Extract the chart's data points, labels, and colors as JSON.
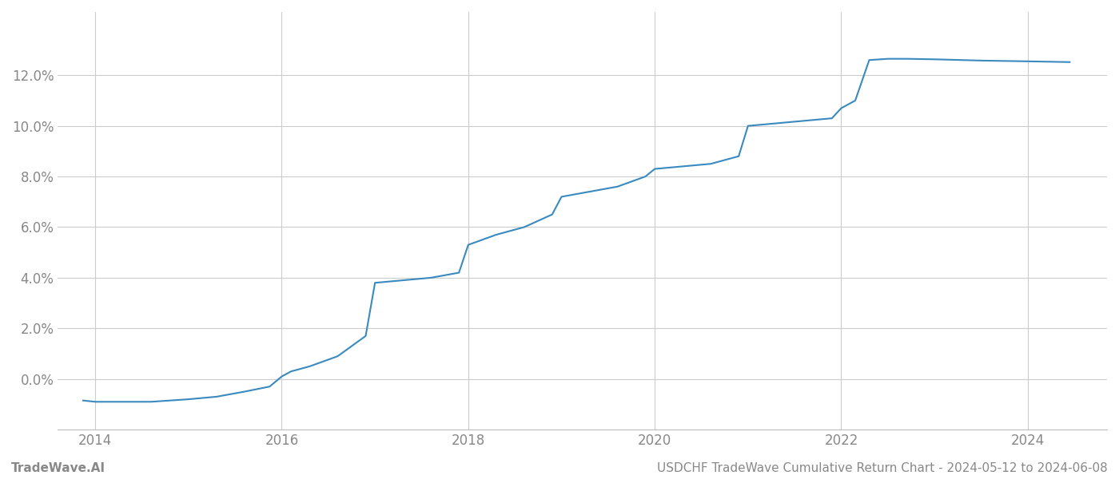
{
  "x_values": [
    2013.87,
    2014.0,
    2014.3,
    2014.6,
    2015.0,
    2015.3,
    2015.6,
    2015.87,
    2016.0,
    2016.1,
    2016.3,
    2016.6,
    2016.9,
    2017.0,
    2017.3,
    2017.6,
    2017.9,
    2018.0,
    2018.3,
    2018.6,
    2018.9,
    2019.0,
    2019.3,
    2019.6,
    2019.9,
    2020.0,
    2020.3,
    2020.6,
    2020.9,
    2021.0,
    2021.3,
    2021.6,
    2021.9,
    2022.0,
    2022.15,
    2022.3,
    2022.5,
    2022.7,
    2023.0,
    2023.5,
    2024.0,
    2024.45
  ],
  "y_values": [
    -0.0085,
    -0.009,
    -0.009,
    -0.009,
    -0.008,
    -0.007,
    -0.005,
    -0.003,
    0.001,
    0.003,
    0.005,
    0.009,
    0.017,
    0.038,
    0.039,
    0.04,
    0.042,
    0.053,
    0.057,
    0.06,
    0.065,
    0.072,
    0.074,
    0.076,
    0.08,
    0.083,
    0.084,
    0.085,
    0.088,
    0.1,
    0.101,
    0.102,
    0.103,
    0.107,
    0.11,
    0.126,
    0.1265,
    0.1265,
    0.1263,
    0.1258,
    0.1255,
    0.1252
  ],
  "line_color": "#3a8abf",
  "line_width": 1.5,
  "background_color": "#ffffff",
  "grid_color": "#cccccc",
  "title": "USDCHF TradeWave Cumulative Return Chart - 2024-05-12 to 2024-06-08",
  "footer_left": "TradeWave.AI",
  "footer_right": "USDCHF TradeWave Cumulative Return Chart - 2024-05-12 to 2024-06-08",
  "xlim": [
    2013.6,
    2024.85
  ],
  "ylim": [
    -0.02,
    0.145
  ],
  "xticks": [
    2014,
    2016,
    2018,
    2020,
    2022,
    2024
  ],
  "yticks": [
    0.0,
    0.02,
    0.04,
    0.06,
    0.08,
    0.1,
    0.12
  ],
  "tick_label_color": "#888888",
  "tick_fontsize": 12,
  "footer_fontsize": 11,
  "spine_color": "#bbbbbb"
}
